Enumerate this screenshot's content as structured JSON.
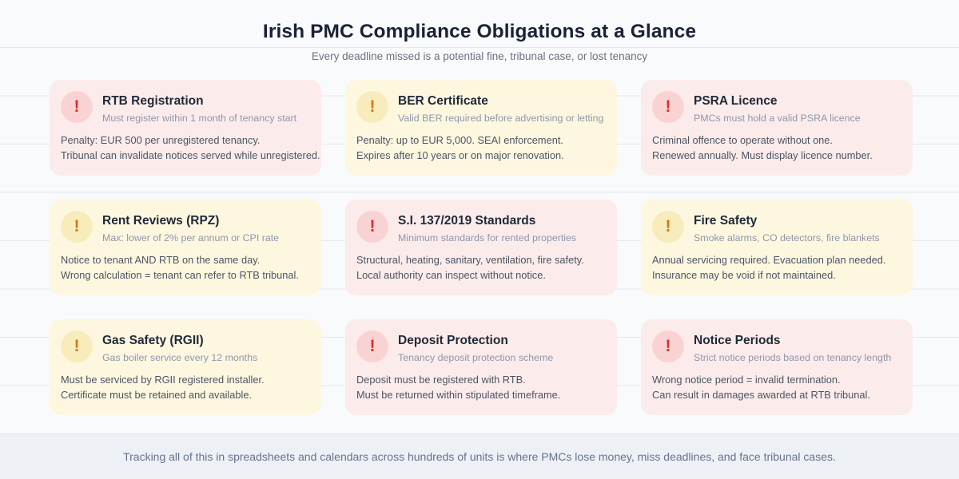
{
  "page": {
    "title": "Irish PMC Compliance Obligations at a Glance",
    "subtitle": "Every deadline missed is a potential fine, tribunal case, or lost tenancy"
  },
  "icons": {
    "alert_glyph": "!"
  },
  "colors": {
    "page_bg": "#f8fafc",
    "rule_line": "#e5e8ee",
    "title_text": "#1a2236",
    "high_card_bg": "#fcebeb",
    "high_icon_circle": "#f9d3d3",
    "high_accent": "#d92c2c",
    "medium_card_bg": "#fdf7e0",
    "medium_icon_circle": "#f9ecbc",
    "medium_accent": "#d97706",
    "footer_bg": "#edf0f5",
    "footer_text": "#66738e"
  },
  "cards": [
    {
      "title": "RTB Registration",
      "subtitle": "Must register within 1 month of tenancy start",
      "line1": "Penalty: EUR 500 per unregistered tenancy.",
      "line2": "Tribunal can invalidate notices served while unregistered.",
      "severity": "high"
    },
    {
      "title": "BER Certificate",
      "subtitle": "Valid BER required before advertising or letting",
      "line1": "Penalty: up to EUR 5,000. SEAI enforcement.",
      "line2": "Expires after 10 years or on major renovation.",
      "severity": "medium"
    },
    {
      "title": "PSRA Licence",
      "subtitle": "PMCs must hold a valid PSRA licence",
      "line1": "Criminal offence to operate without one.",
      "line2": "Renewed annually. Must display licence number.",
      "severity": "high"
    },
    {
      "title": "Rent Reviews (RPZ)",
      "subtitle": "Max: lower of 2% per annum or CPI rate",
      "line1": "Notice to tenant AND RTB on the same day.",
      "line2": "Wrong calculation = tenant can refer to RTB tribunal.",
      "severity": "medium"
    },
    {
      "title": "S.I. 137/2019 Standards",
      "subtitle": "Minimum standards for rented properties",
      "line1": "Structural, heating, sanitary, ventilation, fire safety.",
      "line2": "Local authority can inspect without notice.",
      "severity": "high"
    },
    {
      "title": "Fire Safety",
      "subtitle": "Smoke alarms, CO detectors, fire blankets",
      "line1": "Annual servicing required. Evacuation plan needed.",
      "line2": "Insurance may be void if not maintained.",
      "severity": "medium"
    },
    {
      "title": "Gas Safety (RGII)",
      "subtitle": "Gas boiler service every 12 months",
      "line1": "Must be serviced by RGII registered installer.",
      "line2": "Certificate must be retained and available.",
      "severity": "medium"
    },
    {
      "title": "Deposit Protection",
      "subtitle": "Tenancy deposit protection scheme",
      "line1": "Deposit must be registered with RTB.",
      "line2": "Must be returned within stipulated timeframe.",
      "severity": "high"
    },
    {
      "title": "Notice Periods",
      "subtitle": "Strict notice periods based on tenancy length",
      "line1": "Wrong notice period = invalid termination.",
      "line2": "Can result in damages awarded at RTB tribunal.",
      "severity": "high"
    }
  ],
  "footer": {
    "text": "Tracking all of this in spreadsheets and calendars across hundreds of units is where PMCs lose money, miss deadlines, and face tribunal cases."
  }
}
